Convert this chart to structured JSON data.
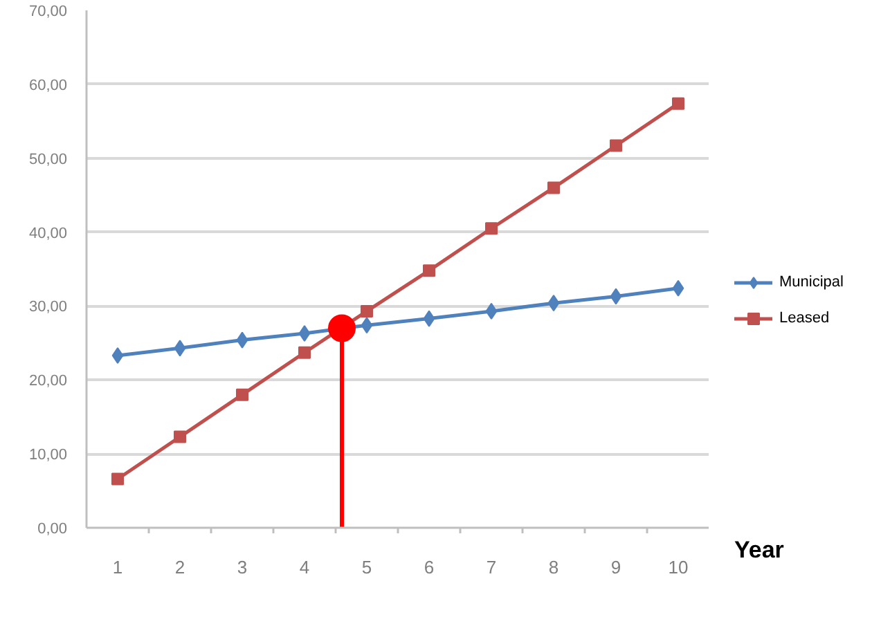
{
  "chart_data": {
    "type": "line",
    "xlabel": "Year",
    "x": [
      1,
      2,
      3,
      4,
      5,
      6,
      7,
      8,
      9,
      10
    ],
    "xlim": [
      0.5,
      10.5
    ],
    "xticks": [
      1,
      2,
      3,
      4,
      5,
      6,
      7,
      8,
      9,
      10,
      {
        "value": 1.5,
        "label": null
      },
      {
        "value": 2.5,
        "label": null
      },
      {
        "value": 3.5,
        "label": null
      },
      {
        "value": 4.5,
        "label": null
      },
      {
        "value": 5.5,
        "label": null
      },
      {
        "value": 6.5,
        "label": null
      },
      {
        "value": 7.5,
        "label": null
      },
      {
        "value": 8.5,
        "label": null
      },
      {
        "value": 9.5,
        "label": null
      }
    ],
    "ylim": [
      0,
      70
    ],
    "yticks": [
      {
        "value": 0,
        "label": "0,00"
      },
      {
        "value": 10,
        "label": "10,00"
      },
      {
        "value": 20,
        "label": "20,00"
      },
      {
        "value": 30,
        "label": "30,00"
      },
      {
        "value": 40,
        "label": "40,00"
      },
      {
        "value": 50,
        "label": "50,00"
      },
      {
        "value": 60,
        "label": "60,00"
      },
      {
        "value": 70,
        "label": "70,00"
      }
    ],
    "grid": "y",
    "legend": "right",
    "series": [
      {
        "name": "Municipal",
        "color": "#4f81bd",
        "marker": "diamond",
        "values": [
          23.3,
          24.3,
          25.4,
          26.3,
          27.4,
          28.3,
          29.3,
          30.4,
          31.3,
          32.4
        ]
      },
      {
        "name": "Leased",
        "color": "#c0504d",
        "marker": "square",
        "values": [
          6.6,
          12.3,
          18.0,
          23.7,
          29.3,
          34.8,
          40.5,
          46.0,
          51.7,
          57.4
        ]
      },
      {
        "type": "lollipop",
        "color": "#ff0000",
        "x": [
          4.6
        ],
        "values": [
          27.0
        ]
      }
    ]
  }
}
